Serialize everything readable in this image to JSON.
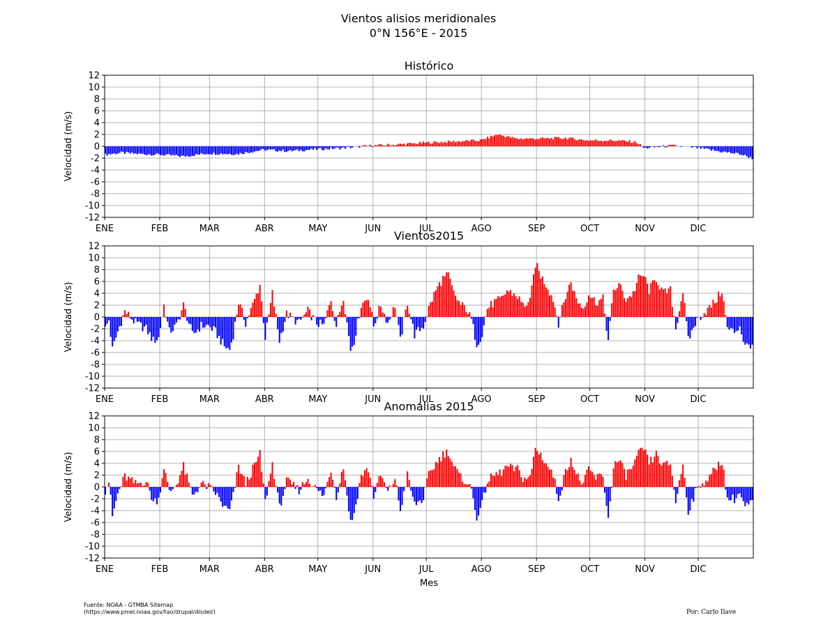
{
  "figure": {
    "title_line1": "Vientos alisios meridionales",
    "title_line2": "0°N 156°E - 2015",
    "source_line1": "Fuente: NOAA - GTMBA Sitemap",
    "source_line2": "(https://www.pmel.noaa.gov/tao/drupal/disdel/)",
    "author": "Por: Carlo Ilave"
  },
  "colors": {
    "positive": "#ff0000",
    "negative": "#0000ff",
    "grid": "#b0b0b0"
  },
  "chart_data": [
    {
      "type": "bar",
      "title": "Histórico",
      "ylabel": "Velocidad (m/s)",
      "xlabel": "",
      "ylim": [
        -12,
        12
      ],
      "yticks": [
        -12,
        -10,
        -8,
        -6,
        -4,
        -2,
        0,
        2,
        4,
        6,
        8,
        10,
        12
      ],
      "xticks": [
        "ENE",
        "FEB",
        "MAR",
        "ABR",
        "MAY",
        "JUN",
        "JUL",
        "AGO",
        "SEP",
        "OCT",
        "NOV",
        "DIC"
      ],
      "grid": true,
      "series": [
        {
          "keypoints_day_value": [
            [
              1,
              -1.4
            ],
            [
              10,
              -1.1
            ],
            [
              20,
              -1.3
            ],
            [
              31,
              -1.4
            ],
            [
              45,
              -1.7
            ],
            [
              59,
              -1.2
            ],
            [
              75,
              -1.3
            ],
            [
              90,
              -0.6
            ],
            [
              105,
              -0.8
            ],
            [
              120,
              -0.5
            ],
            [
              135,
              -0.3
            ],
            [
              150,
              0.1
            ],
            [
              165,
              0.3
            ],
            [
              181,
              0.6
            ],
            [
              196,
              0.8
            ],
            [
              212,
              1.0
            ],
            [
              222,
              2.0
            ],
            [
              232,
              1.3
            ],
            [
              245,
              1.3
            ],
            [
              260,
              1.4
            ],
            [
              273,
              1.0
            ],
            [
              288,
              1.0
            ],
            [
              300,
              0.7
            ],
            [
              304,
              -0.3
            ],
            [
              320,
              0.1
            ],
            [
              335,
              -0.3
            ],
            [
              345,
              -0.8
            ],
            [
              358,
              -1.3
            ],
            [
              365,
              -2.0
            ]
          ]
        }
      ]
    },
    {
      "type": "bar",
      "title": "Vientos2015",
      "ylabel": "Velocidad (m/s)",
      "xlabel": "",
      "ylim": [
        -12,
        12
      ],
      "yticks": [
        -12,
        -10,
        -8,
        -6,
        -4,
        -2,
        0,
        2,
        4,
        6,
        8,
        10,
        12
      ],
      "xticks": [
        "ENE",
        "FEB",
        "MAR",
        "ABR",
        "MAY",
        "JUN",
        "JUL",
        "AGO",
        "SEP",
        "OCT",
        "NOV",
        "DIC"
      ],
      "grid": true,
      "series": [
        {
          "keypoints_day_value": [
            [
              1,
              -2.0
            ],
            [
              3,
              -0.5
            ],
            [
              5,
              -5.5
            ],
            [
              8,
              -2.5
            ],
            [
              12,
              1.0
            ],
            [
              18,
              -1.0
            ],
            [
              24,
              -2.0
            ],
            [
              28,
              -4.0
            ],
            [
              31,
              -3.5
            ],
            [
              34,
              2.0
            ],
            [
              37,
              -2.5
            ],
            [
              41,
              -1.5
            ],
            [
              45,
              2.0
            ],
            [
              50,
              -3.0
            ],
            [
              55,
              -1.5
            ],
            [
              59,
              -1.5
            ],
            [
              63,
              -2.5
            ],
            [
              68,
              -5.0
            ],
            [
              71,
              -5.5
            ],
            [
              73,
              -3.0
            ],
            [
              76,
              2.5
            ],
            [
              80,
              -1.0
            ],
            [
              84,
              2.0
            ],
            [
              88,
              5.5
            ],
            [
              91,
              -3.5
            ],
            [
              95,
              4.0
            ],
            [
              99,
              -4.0
            ],
            [
              103,
              0.5
            ],
            [
              110,
              -1.0
            ],
            [
              115,
              1.0
            ],
            [
              120,
              -1.0
            ],
            [
              124,
              -1.5
            ],
            [
              128,
              3.0
            ],
            [
              131,
              -1.5
            ],
            [
              135,
              3.5
            ],
            [
              139,
              -5.5
            ],
            [
              141,
              -4.0
            ],
            [
              145,
              2.0
            ],
            [
              149,
              3.5
            ],
            [
              152,
              -1.5
            ],
            [
              156,
              2.0
            ],
            [
              160,
              -1.0
            ],
            [
              164,
              2.0
            ],
            [
              167,
              -4.0
            ],
            [
              171,
              2.5
            ],
            [
              175,
              -3.0
            ],
            [
              180,
              -1.5
            ],
            [
              183,
              1.5
            ],
            [
              187,
              4.5
            ],
            [
              191,
              6.5
            ],
            [
              194,
              7.0
            ],
            [
              197,
              4.0
            ],
            [
              201,
              2.0
            ],
            [
              204,
              1.5
            ],
            [
              207,
              -0.5
            ],
            [
              210,
              -4.5
            ],
            [
              213,
              -3.0
            ],
            [
              216,
              1.5
            ],
            [
              220,
              2.5
            ],
            [
              224,
              3.0
            ],
            [
              227,
              4.5
            ],
            [
              230,
              4.0
            ],
            [
              233,
              3.5
            ],
            [
              236,
              2.0
            ],
            [
              240,
              2.5
            ],
            [
              243,
              9.0
            ],
            [
              246,
              7.0
            ],
            [
              250,
              5.0
            ],
            [
              253,
              3.0
            ],
            [
              256,
              -1.0
            ],
            [
              260,
              3.5
            ],
            [
              263,
              6.0
            ],
            [
              266,
              3.0
            ],
            [
              270,
              1.5
            ],
            [
              273,
              4.0
            ],
            [
              277,
              2.5
            ],
            [
              281,
              3.0
            ],
            [
              284,
              -4.0
            ],
            [
              287,
              4.5
            ],
            [
              290,
              5.5
            ],
            [
              294,
              3.0
            ],
            [
              298,
              4.0
            ],
            [
              301,
              6.5
            ],
            [
              304,
              7.0
            ],
            [
              307,
              4.5
            ],
            [
              311,
              6.5
            ],
            [
              315,
              4.0
            ],
            [
              319,
              4.5
            ],
            [
              322,
              -2.0
            ],
            [
              326,
              4.5
            ],
            [
              329,
              -4.0
            ],
            [
              333,
              -1.0
            ],
            [
              337,
              0.5
            ],
            [
              341,
              1.5
            ],
            [
              345,
              3.0
            ],
            [
              348,
              4.5
            ],
            [
              351,
              -2.0
            ],
            [
              355,
              -2.5
            ],
            [
              358,
              -1.5
            ],
            [
              361,
              -5.0
            ],
            [
              365,
              -4.5
            ]
          ]
        }
      ]
    },
    {
      "type": "bar",
      "title": "Anomalias 2015",
      "ylabel": "Velocidad (m/s)",
      "xlabel": "Mes",
      "ylim": [
        -12,
        12
      ],
      "yticks": [
        -12,
        -10,
        -8,
        -6,
        -4,
        -2,
        0,
        2,
        4,
        6,
        8,
        10,
        12
      ],
      "xticks": [
        "ENE",
        "FEB",
        "MAR",
        "ABR",
        "MAY",
        "JUN",
        "JUL",
        "AGO",
        "SEP",
        "OCT",
        "NOV",
        "DIC"
      ],
      "grid": true,
      "series": [
        {
          "keypoints_day_value": [
            [
              1,
              -0.6
            ],
            [
              3,
              1.0
            ],
            [
              5,
              -5.0
            ],
            [
              8,
              -1.2
            ],
            [
              12,
              1.8
            ],
            [
              18,
              0.5
            ],
            [
              24,
              1.0
            ],
            [
              28,
              -2.5
            ],
            [
              31,
              -2.0
            ],
            [
              34,
              3.5
            ],
            [
              37,
              -1.0
            ],
            [
              41,
              0.5
            ],
            [
              45,
              3.5
            ],
            [
              50,
              -1.5
            ],
            [
              55,
              0.5
            ],
            [
              59,
              0
            ],
            [
              63,
              -1.0
            ],
            [
              68,
              -3.5
            ],
            [
              71,
              -4.0
            ],
            [
              73,
              -1.5
            ],
            [
              76,
              3.5
            ],
            [
              80,
              0.5
            ],
            [
              84,
              3.0
            ],
            [
              88,
              5.5
            ],
            [
              91,
              -2.5
            ],
            [
              95,
              4.0
            ],
            [
              99,
              -3.5
            ],
            [
              103,
              1.0
            ],
            [
              110,
              -0.5
            ],
            [
              115,
              1.5
            ],
            [
              120,
              -0.5
            ],
            [
              124,
              -1.5
            ],
            [
              128,
              3.0
            ],
            [
              131,
              -1.5
            ],
            [
              135,
              3.5
            ],
            [
              139,
              -6.0
            ],
            [
              141,
              -4.5
            ],
            [
              145,
              2.0
            ],
            [
              149,
              3.0
            ],
            [
              152,
              -1.5
            ],
            [
              156,
              2.0
            ],
            [
              160,
              -1.0
            ],
            [
              164,
              1.5
            ],
            [
              167,
              -4.0
            ],
            [
              171,
              2.0
            ],
            [
              175,
              -3.0
            ],
            [
              180,
              -2.0
            ],
            [
              183,
              2.0
            ],
            [
              187,
              4.0
            ],
            [
              191,
              5.5
            ],
            [
              194,
              6.0
            ],
            [
              197,
              3.5
            ],
            [
              201,
              1.5
            ],
            [
              204,
              1.0
            ],
            [
              207,
              -0.5
            ],
            [
              210,
              -5.0
            ],
            [
              213,
              -3.0
            ],
            [
              216,
              1.0
            ],
            [
              220,
              2.0
            ],
            [
              224,
              2.5
            ],
            [
              227,
              3.5
            ],
            [
              230,
              3.0
            ],
            [
              233,
              3.0
            ],
            [
              236,
              1.5
            ],
            [
              240,
              1.5
            ],
            [
              243,
              6.5
            ],
            [
              246,
              5.5
            ],
            [
              250,
              3.5
            ],
            [
              253,
              2.0
            ],
            [
              256,
              -2.0
            ],
            [
              260,
              2.5
            ],
            [
              263,
              5.0
            ],
            [
              266,
              2.0
            ],
            [
              270,
              0.5
            ],
            [
              273,
              3.0
            ],
            [
              277,
              1.5
            ],
            [
              281,
              2.0
            ],
            [
              284,
              -5.5
            ],
            [
              287,
              3.5
            ],
            [
              290,
              4.5
            ],
            [
              294,
              2.0
            ],
            [
              298,
              3.5
            ],
            [
              301,
              5.5
            ],
            [
              304,
              6.5
            ],
            [
              307,
              4.0
            ],
            [
              311,
              5.5
            ],
            [
              315,
              3.5
            ],
            [
              319,
              4.0
            ],
            [
              322,
              -2.5
            ],
            [
              326,
              4.0
            ],
            [
              329,
              -4.0
            ],
            [
              333,
              -1.0
            ],
            [
              337,
              0.8
            ],
            [
              341,
              1.5
            ],
            [
              345,
              3.5
            ],
            [
              348,
              4.5
            ],
            [
              351,
              -2.0
            ],
            [
              355,
              -2.0
            ],
            [
              358,
              -1.0
            ],
            [
              361,
              -3.5
            ],
            [
              365,
              -2.5
            ]
          ]
        }
      ]
    }
  ]
}
